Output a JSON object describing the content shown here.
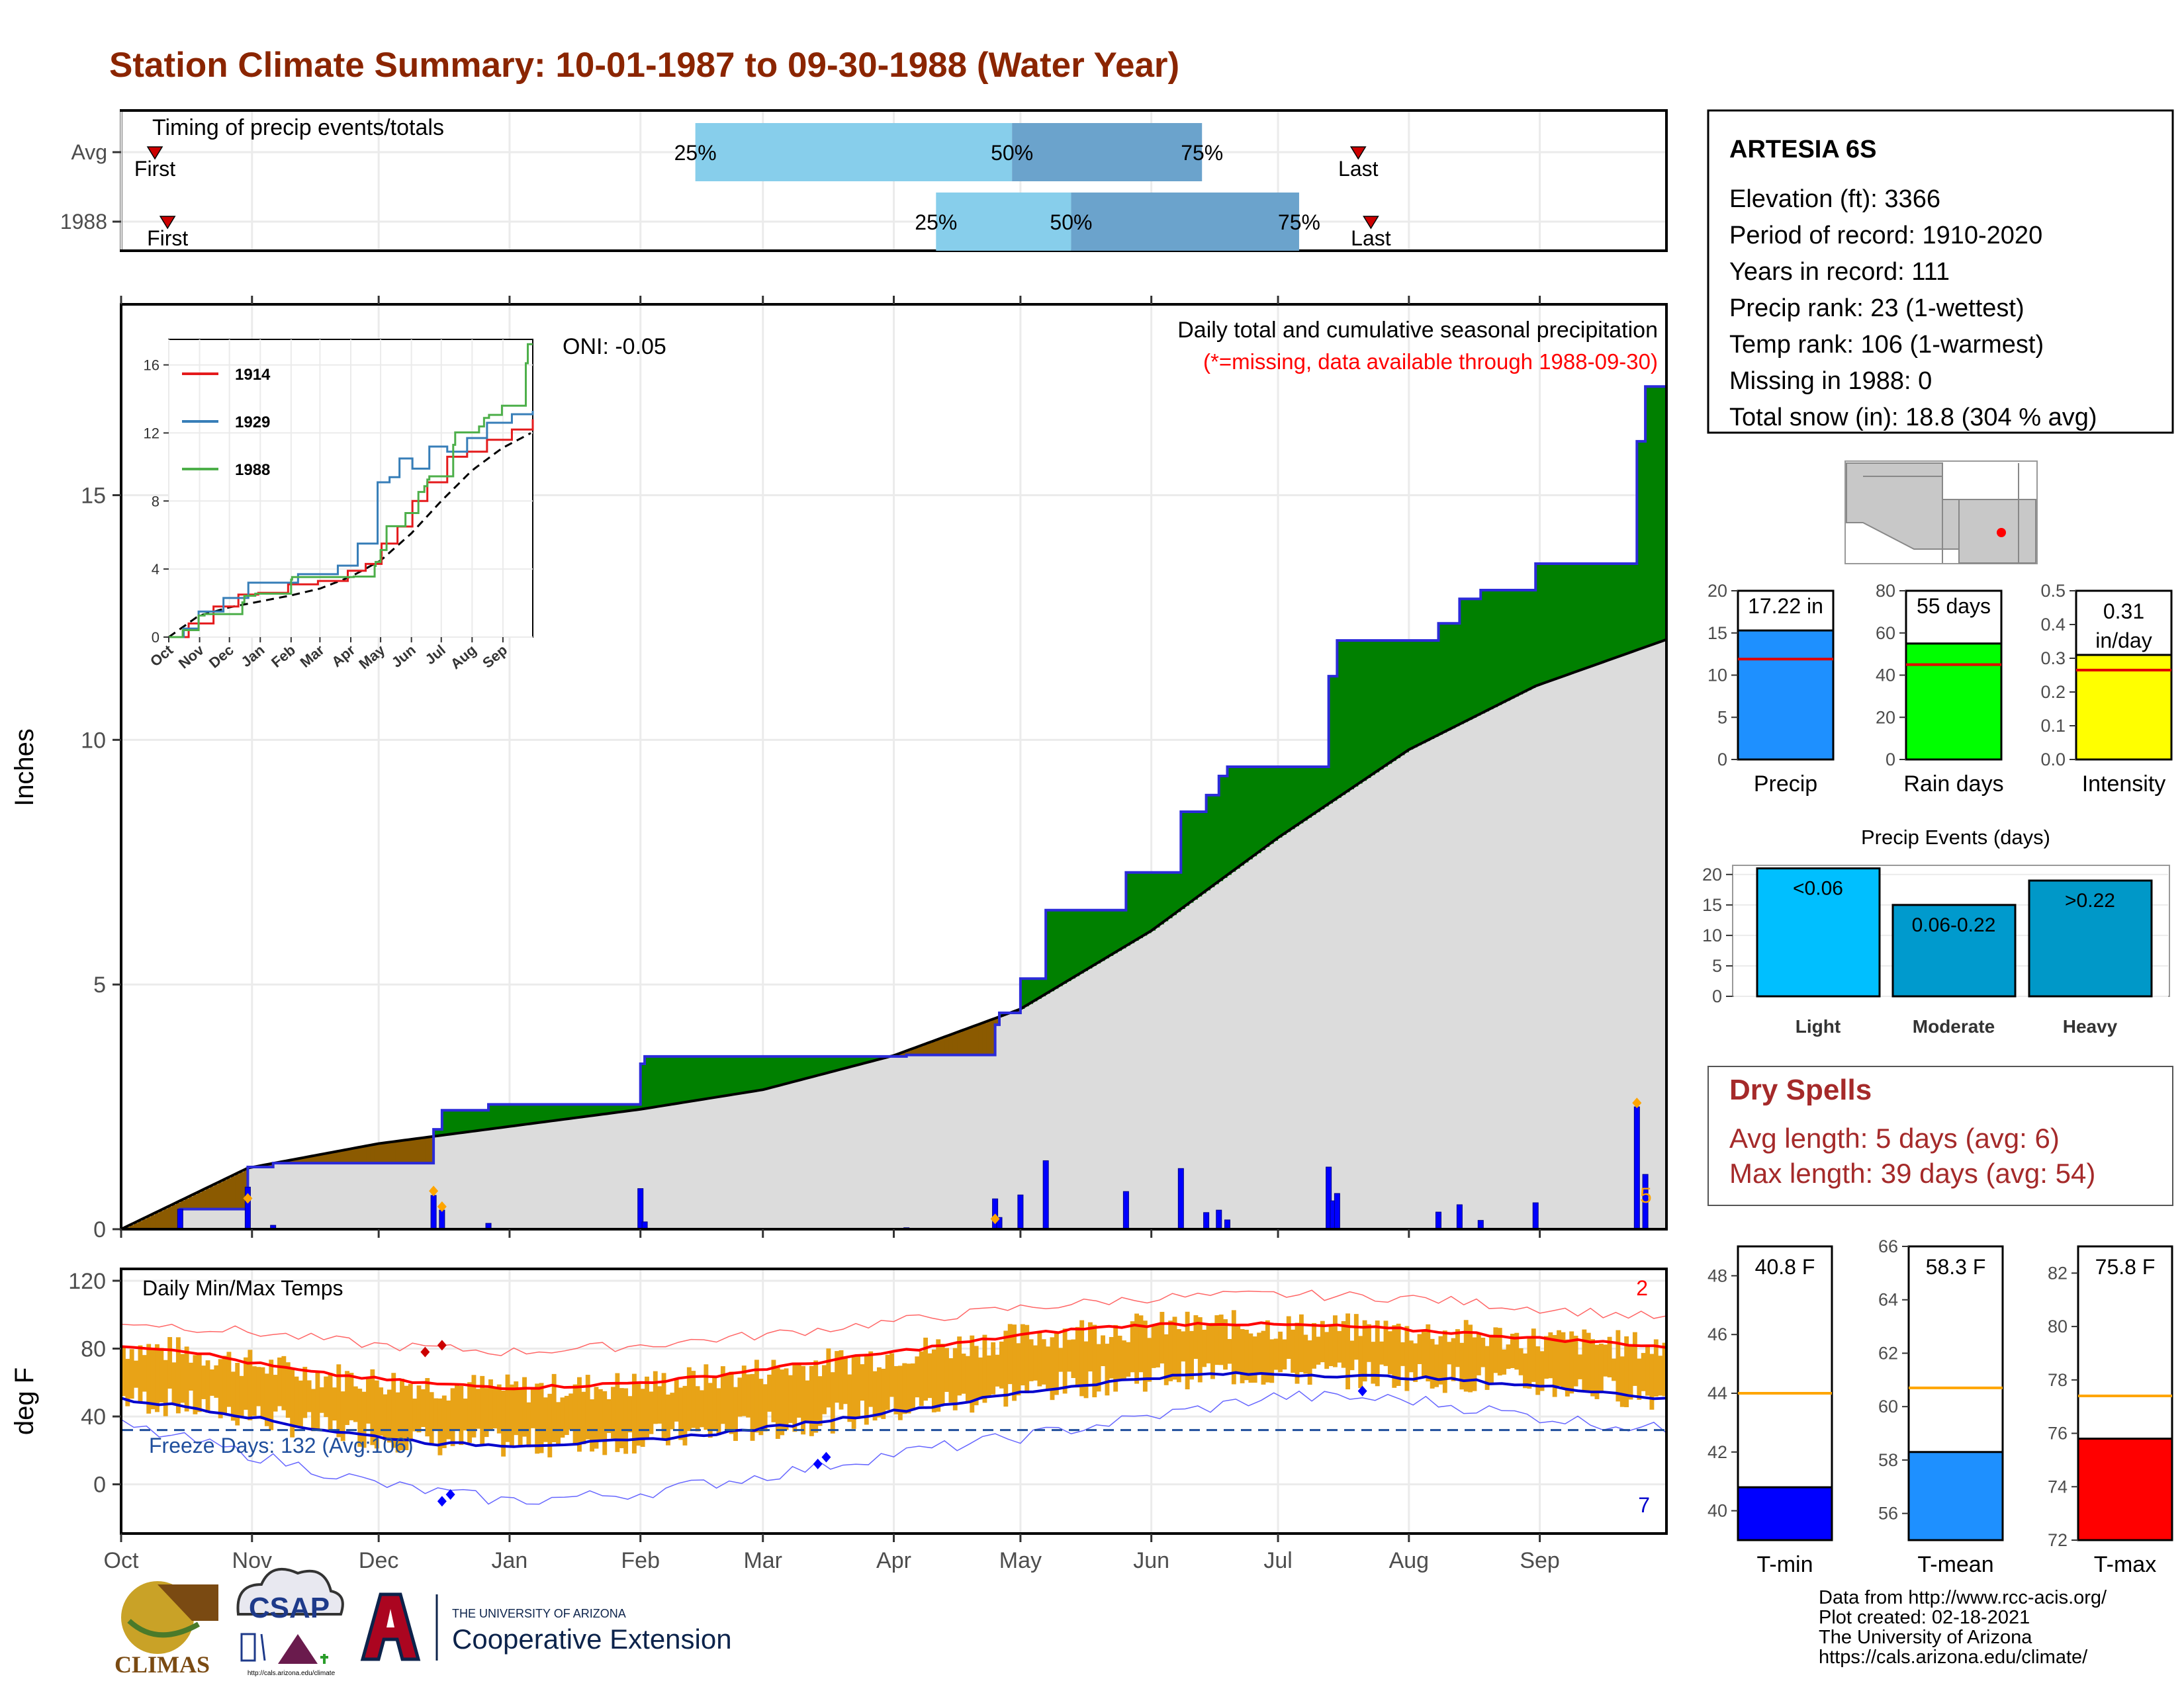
{
  "page_title": "Station Climate Summary: 10-01-1987 to 09-30-1988 (Water Year)",
  "colors": {
    "title": "#8B2500",
    "q_light": "#87CEEB",
    "q_dark": "#6BA3CC",
    "cum_current": "#2B2BD9",
    "wet_fill": "#008000",
    "dry_fill": "#8B5A00",
    "normal_fill": "#DCDCDC",
    "daily_bar": "#0000FF",
    "temp_band": "#E8A317",
    "tmax_avg": "#FF0000",
    "tmin_avg": "#0000CC",
    "precip_bar": "#1E90FF",
    "raindays_bar": "#00FF00",
    "intensity_bar": "#FFFF00",
    "light_bar": "#00BFFF",
    "moderate_bar": "#009ACD",
    "heavy_bar": "#0098C8",
    "dry_spell_text": "#A52A2A",
    "tmin_bar": "#0000FF",
    "tmean_bar": "#1E90FF",
    "tmax_bar": "#FF0000"
  },
  "timing": {
    "label": "Timing of precip events/totals",
    "rows": [
      {
        "name": "Avg",
        "first": "First",
        "last": "Last",
        "q25": "25%",
        "q50": "50%",
        "q75": "75%",
        "q25_day": 136,
        "q50_day": 211,
        "q75_day": 256,
        "first_day": 8,
        "last_day": 293
      },
      {
        "name": "1988",
        "first": "First",
        "last": "Last",
        "q25": "25%",
        "q50": "50%",
        "q75": "75%",
        "q25_day": 193,
        "q50_day": 225,
        "q75_day": 279,
        "first_day": 11,
        "last_day": 296
      }
    ]
  },
  "main_chart": {
    "ylabel": "Inches",
    "annotation_title": "Daily total and cumulative seasonal precipitation",
    "annotation_missing": "(*=missing, data available through 1988-09-30)",
    "oni": "ONI: -0.05",
    "right_count": "5",
    "y_ticks": [
      "0",
      "5",
      "10",
      "15"
    ]
  },
  "month_labels": [
    "Oct",
    "Nov",
    "Dec",
    "Jan",
    "Feb",
    "Mar",
    "Apr",
    "May",
    "Jun",
    "Jul",
    "Aug",
    "Sep"
  ],
  "inset": {
    "y_ticks": [
      "0",
      "4",
      "8",
      "12",
      "16"
    ],
    "x_ticks": [
      "Oct",
      "Nov",
      "Dec",
      "Jan",
      "Feb",
      "Mar",
      "Apr",
      "May",
      "Jun",
      "Jul",
      "Aug",
      "Sep"
    ],
    "legend": [
      {
        "name": "1914",
        "color": "#E41A1C"
      },
      {
        "name": "1929",
        "color": "#377EB8"
      },
      {
        "name": "1988",
        "color": "#4DAF4A"
      }
    ]
  },
  "temp_chart": {
    "ylabel": "deg F",
    "title": "Daily Min/Max Temps",
    "freeze": "Freeze Days: 132 (Avg:106)",
    "top_count": "2",
    "bottom_count": "7",
    "y_ticks": [
      "0",
      "40",
      "80",
      "120"
    ]
  },
  "station": {
    "name": "ARTESIA 6S",
    "lines": [
      "Elevation (ft): 3366",
      "Period of record: 1910-2020",
      "Years in record: 111",
      "Precip rank: 23 (1-wettest)",
      "Temp rank: 106 (1-warmest)",
      "Missing in 1988: 0",
      "Total snow (in): 18.8 (304 % avg)"
    ]
  },
  "mini_bars": [
    {
      "label": "Precip",
      "value_text": "17.22 in",
      "value": 17.22,
      "avg": 11.9,
      "ymax": 20,
      "ticks": [
        "0",
        "5",
        "10",
        "15",
        "20"
      ],
      "tick_vals": [
        0,
        5,
        10,
        15,
        20
      ]
    },
    {
      "label": "Rain days",
      "value_text": "55 days",
      "value": 55,
      "avg": 45,
      "ymax": 80,
      "ticks": [
        "0",
        "20",
        "40",
        "60",
        "80"
      ],
      "tick_vals": [
        0,
        20,
        40,
        60,
        80
      ]
    },
    {
      "label": "Intensity",
      "value_text": "0.31 in/day",
      "value": 0.31,
      "avg": 0.265,
      "ymax": 0.5,
      "ticks": [
        "0.0",
        "0.1",
        "0.2",
        "0.3",
        "0.4",
        "0.5"
      ],
      "tick_vals": [
        0,
        0.1,
        0.2,
        0.3,
        0.4,
        0.5
      ]
    }
  ],
  "events": {
    "title": "Precip Events (days)",
    "ticks": [
      "0",
      "5",
      "10",
      "15",
      "20"
    ],
    "bars": [
      {
        "label": "Light",
        "range": "<0.06",
        "value": 21
      },
      {
        "label": "Moderate",
        "range": "0.06-0.22",
        "value": 15
      },
      {
        "label": "Heavy",
        "range": ">0.22",
        "value": 19
      }
    ]
  },
  "dry_spells": {
    "title": "Dry Spells",
    "avg": "Avg length: 5 days (avg: 6)",
    "max": "Max length: 39 days (avg: 54)"
  },
  "temp_bars": [
    {
      "label": "T-min",
      "value_text": "40.8 F",
      "value": 40.8,
      "avg": 44.0,
      "ymin": 39,
      "ymax": 49,
      "ticks": [
        "40",
        "42",
        "44",
        "46",
        "48"
      ],
      "tick_vals": [
        40,
        42,
        44,
        46,
        48
      ]
    },
    {
      "label": "T-mean",
      "value_text": "58.3 F",
      "value": 58.3,
      "avg": 60.7,
      "ymin": 55,
      "ymax": 66,
      "ticks": [
        "56",
        "58",
        "60",
        "62",
        "64",
        "66"
      ],
      "tick_vals": [
        56,
        58,
        60,
        62,
        64,
        66
      ]
    },
    {
      "label": "T-max",
      "value_text": "75.8 F",
      "value": 75.8,
      "avg": 77.4,
      "ymin": 72,
      "ymax": 83,
      "ticks": [
        "72",
        "74",
        "76",
        "78",
        "80",
        "82"
      ],
      "tick_vals": [
        72,
        74,
        76,
        78,
        80,
        82
      ]
    }
  ],
  "footer": {
    "lines": [
      "Data from http://www.rcc-acis.org/",
      "Plot created: 02-18-2021",
      "The University of Arizona",
      "https://cals.arizona.edu/climate/"
    ],
    "climas": "CLIMAS",
    "csap": "CSAP",
    "csap_url": "http://cals.arizona.edu/climate",
    "ua_top": "THE UNIVERSITY OF ARIZONA",
    "ua_bottom": "Cooperative Extension"
  },
  "chart_data": [
    {
      "type": "area",
      "title": "Daily total and cumulative seasonal precipitation",
      "ylabel": "Inches",
      "ylim": [
        0,
        18.9
      ],
      "x_unit": "day of water year (Oct 1 = 0)",
      "series": [
        {
          "name": "1988 cumulative",
          "points": [
            [
              0,
              0
            ],
            [
              14,
              0
            ],
            [
              14,
              0.41
            ],
            [
              30,
              0.41
            ],
            [
              30,
              1.27
            ],
            [
              36,
              1.27
            ],
            [
              36,
              1.35
            ],
            [
              74,
              1.35
            ],
            [
              74,
              2.04
            ],
            [
              76,
              2.04
            ],
            [
              76,
              2.43
            ],
            [
              87,
              2.43
            ],
            [
              87,
              2.55
            ],
            [
              123,
              2.55
            ],
            [
              123,
              3.38
            ],
            [
              124,
              3.38
            ],
            [
              124,
              3.53
            ],
            [
              186,
              3.53
            ],
            [
              186,
              3.56
            ],
            [
              207,
              3.56
            ],
            [
              207,
              4.18
            ],
            [
              208,
              4.18
            ],
            [
              208,
              4.42
            ],
            [
              213,
              4.42
            ],
            [
              213,
              5.12
            ],
            [
              219,
              5.12
            ],
            [
              219,
              6.52
            ],
            [
              238,
              6.52
            ],
            [
              238,
              7.29
            ],
            [
              251,
              7.29
            ],
            [
              251,
              8.53
            ],
            [
              257,
              8.53
            ],
            [
              257,
              8.87
            ],
            [
              260,
              8.87
            ],
            [
              260,
              9.26
            ],
            [
              262,
              9.26
            ],
            [
              262,
              9.45
            ],
            [
              286,
              9.45
            ],
            [
              286,
              11.3
            ],
            [
              288,
              11.3
            ],
            [
              288,
              12.03
            ],
            [
              312,
              12.03
            ],
            [
              312,
              12.38
            ],
            [
              317,
              12.38
            ],
            [
              317,
              12.88
            ],
            [
              322,
              12.88
            ],
            [
              322,
              13.06
            ],
            [
              335,
              13.06
            ],
            [
              335,
              13.6
            ],
            [
              359,
              13.6
            ],
            [
              359,
              16.1
            ],
            [
              361,
              16.1
            ],
            [
              361,
              17.22
            ],
            [
              366,
              17.22
            ]
          ]
        },
        {
          "name": "Normal cumulative",
          "points": [
            [
              0,
              0
            ],
            [
              30,
              1.25
            ],
            [
              61,
              1.75
            ],
            [
              92,
              2.1
            ],
            [
              123,
              2.45
            ],
            [
              152,
              2.85
            ],
            [
              183,
              3.55
            ],
            [
              213,
              4.5
            ],
            [
              244,
              6.1
            ],
            [
              274,
              8.0
            ],
            [
              305,
              9.8
            ],
            [
              335,
              11.1
            ],
            [
              366,
              12.05
            ]
          ]
        }
      ],
      "daily": [
        [
          14,
          0.41
        ],
        [
          30,
          0.86
        ],
        [
          36,
          0.08
        ],
        [
          74,
          0.69
        ],
        [
          76,
          0.39
        ],
        [
          87,
          0.12
        ],
        [
          123,
          0.83
        ],
        [
          124,
          0.15
        ],
        [
          186,
          0.03
        ],
        [
          207,
          0.62
        ],
        [
          208,
          0.24
        ],
        [
          213,
          0.7
        ],
        [
          219,
          1.4
        ],
        [
          238,
          0.77
        ],
        [
          251,
          1.24
        ],
        [
          257,
          0.34
        ],
        [
          260,
          0.39
        ],
        [
          262,
          0.19
        ],
        [
          286,
          1.27
        ],
        [
          287,
          0.58
        ],
        [
          288,
          0.73
        ],
        [
          312,
          0.35
        ],
        [
          317,
          0.5
        ],
        [
          322,
          0.18
        ],
        [
          335,
          0.54
        ],
        [
          359,
          2.5
        ],
        [
          361,
          1.12
        ]
      ]
    },
    {
      "type": "line",
      "title": "Daily Min/Max Temps",
      "ylabel": "deg F",
      "ylim": [
        -20,
        120
      ],
      "x_unit": "day of water year (Oct 1 = 0)",
      "series": [
        {
          "name": "avg max",
          "points": [
            [
              0,
              82
            ],
            [
              15,
              79
            ],
            [
              30,
              72
            ],
            [
              45,
              66
            ],
            [
              61,
              62
            ],
            [
              75,
              59
            ],
            [
              92,
              57
            ],
            [
              107,
              58
            ],
            [
              123,
              60
            ],
            [
              137,
              63
            ],
            [
              152,
              68
            ],
            [
              168,
              73
            ],
            [
              183,
              78
            ],
            [
              198,
              83
            ],
            [
              213,
              88
            ],
            [
              229,
              92
            ],
            [
              244,
              94
            ],
            [
              259,
              95
            ],
            [
              274,
              94
            ],
            [
              290,
              93
            ],
            [
              305,
              91
            ],
            [
              320,
              89
            ],
            [
              335,
              86
            ],
            [
              350,
              84
            ],
            [
              366,
              81
            ]
          ]
        },
        {
          "name": "avg min",
          "points": [
            [
              0,
              50
            ],
            [
              15,
              46
            ],
            [
              30,
              40
            ],
            [
              45,
              33
            ],
            [
              61,
              28
            ],
            [
              75,
              24
            ],
            [
              92,
              23
            ],
            [
              107,
              24
            ],
            [
              123,
              26
            ],
            [
              137,
              29
            ],
            [
              152,
              33
            ],
            [
              168,
              38
            ],
            [
              183,
              43
            ],
            [
              198,
              48
            ],
            [
              213,
              54
            ],
            [
              229,
              59
            ],
            [
              244,
              63
            ],
            [
              259,
              65
            ],
            [
              274,
              65
            ],
            [
              290,
              64
            ],
            [
              305,
              63
            ],
            [
              320,
              61
            ],
            [
              335,
              58
            ],
            [
              350,
              55
            ],
            [
              366,
              50
            ]
          ]
        },
        {
          "name": "record max",
          "points": [
            [
              0,
              96
            ],
            [
              30,
              90
            ],
            [
              61,
              82
            ],
            [
              92,
              78
            ],
            [
              123,
              82
            ],
            [
              152,
              88
            ],
            [
              183,
              96
            ],
            [
              213,
              104
            ],
            [
              244,
              110
            ],
            [
              274,
              112
            ],
            [
              305,
              110
            ],
            [
              335,
              104
            ],
            [
              366,
              98
            ]
          ]
        },
        {
          "name": "record min",
          "points": [
            [
              0,
              35
            ],
            [
              30,
              18
            ],
            [
              61,
              0
            ],
            [
              92,
              -10
            ],
            [
              123,
              -5
            ],
            [
              152,
              5
            ],
            [
              183,
              18
            ],
            [
              213,
              28
            ],
            [
              244,
              40
            ],
            [
              274,
              52
            ],
            [
              305,
              50
            ],
            [
              335,
              40
            ],
            [
              366,
              32
            ]
          ]
        }
      ],
      "freeze_line": 32
    },
    {
      "type": "bar",
      "title": "Precip Events (days)",
      "categories": [
        "Light",
        "Moderate",
        "Heavy"
      ],
      "values": [
        21,
        15,
        19
      ],
      "ylim": [
        0,
        21
      ]
    },
    {
      "type": "bar",
      "categories": [
        "Precip",
        "Rain days",
        "Intensity"
      ],
      "values": [
        17.22,
        55,
        0.31
      ]
    },
    {
      "type": "bar",
      "categories": [
        "T-min",
        "T-mean",
        "T-max"
      ],
      "values": [
        40.8,
        58.3,
        75.8
      ]
    }
  ]
}
